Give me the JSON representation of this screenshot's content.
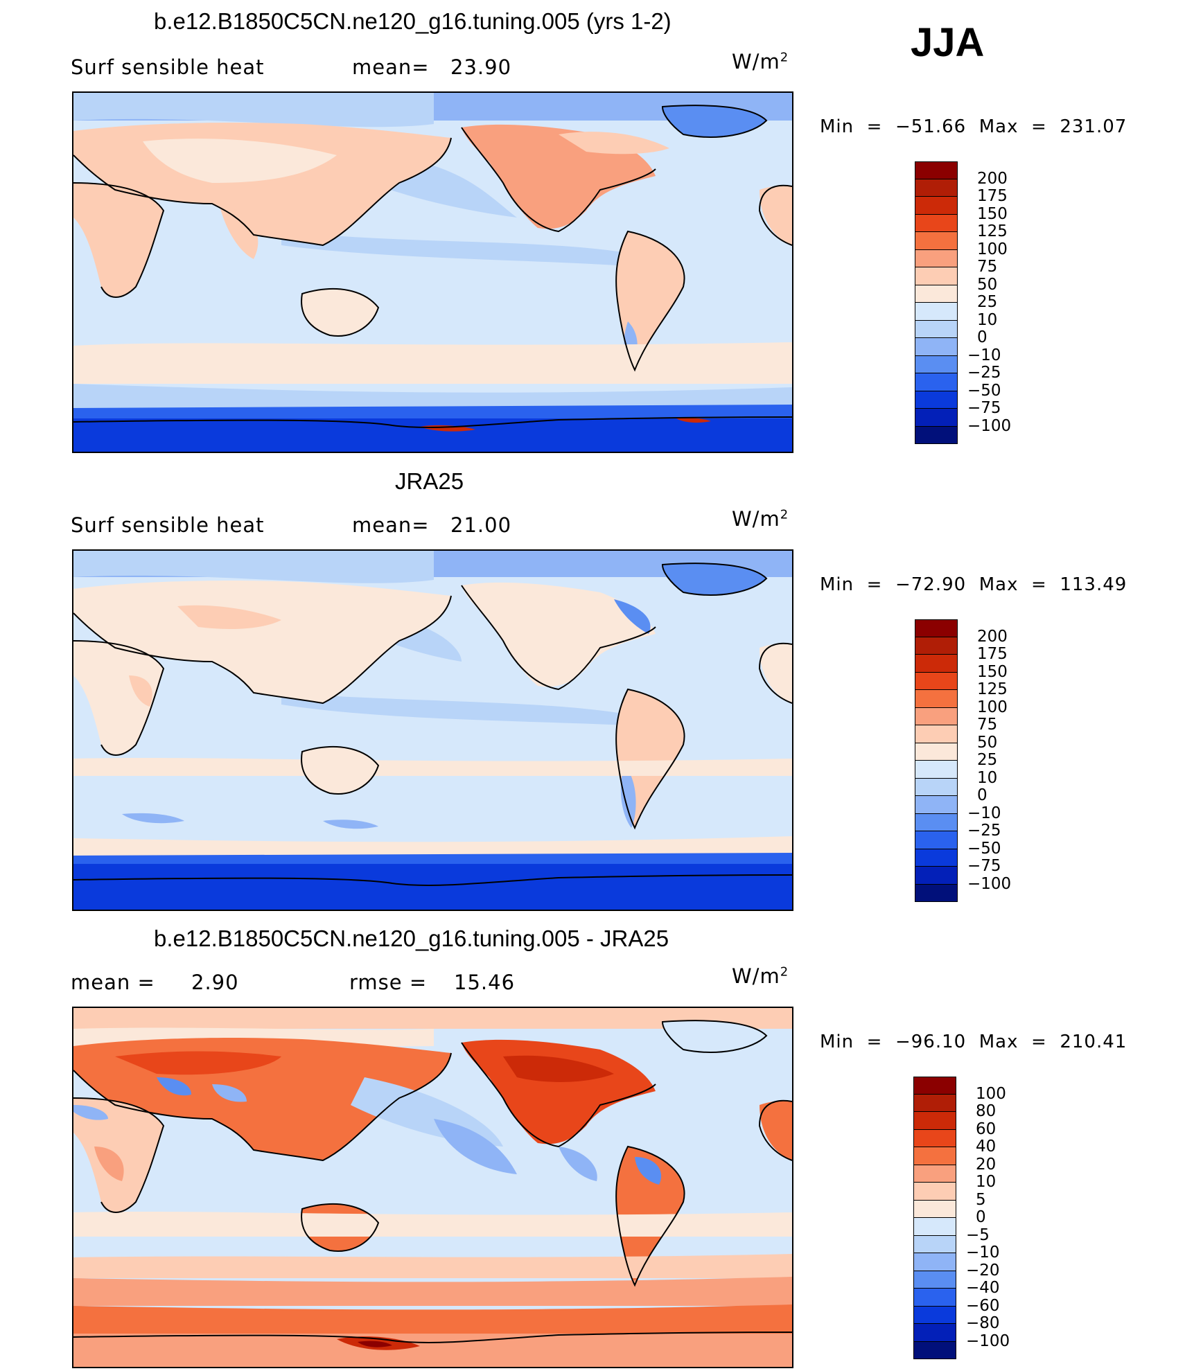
{
  "season": "JJA",
  "panels": [
    {
      "title": "b.e12.B1850C5CN.ne120_g16.tuning.005 (yrs 1-2)",
      "left_label": "Surf  sensible  heat",
      "center_label": "mean=",
      "center_value": "23.90",
      "units_base": "W/m",
      "units_exp": "2",
      "min_label": "Min",
      "min_value": "−51.66",
      "max_label": "Max",
      "max_value": "231.07",
      "colorbar_levels": [
        "200",
        "175",
        "150",
        "125",
        "100",
        "75",
        "50",
        "25",
        "10",
        "0",
        "−10",
        "−25",
        "−50",
        "−75",
        "−100"
      ],
      "colorbar_colors": [
        "#8b0000",
        "#b01e06",
        "#cc2a08",
        "#e8461a",
        "#f4713f",
        "#f9a07e",
        "#fdcdb4",
        "#fbe8da",
        "#d6e8fb",
        "#b8d4f8",
        "#8fb4f6",
        "#5a8ef2",
        "#2a62ee",
        "#0a3adc",
        "#0320b8",
        "#01107a"
      ]
    },
    {
      "title": "JRA25",
      "left_label": "Surf  sensible  heat",
      "center_label": "mean=",
      "center_value": "21.00",
      "units_base": "W/m",
      "units_exp": "2",
      "min_label": "Min",
      "min_value": "−72.90",
      "max_label": "Max",
      "max_value": "113.49",
      "colorbar_levels": [
        "200",
        "175",
        "150",
        "125",
        "100",
        "75",
        "50",
        "25",
        "10",
        "0",
        "−10",
        "−25",
        "−50",
        "−75",
        "−100"
      ],
      "colorbar_colors": [
        "#8b0000",
        "#b01e06",
        "#cc2a08",
        "#e8461a",
        "#f4713f",
        "#f9a07e",
        "#fdcdb4",
        "#fbe8da",
        "#d6e8fb",
        "#b8d4f8",
        "#8fb4f6",
        "#5a8ef2",
        "#2a62ee",
        "#0a3adc",
        "#0320b8",
        "#01107a"
      ]
    },
    {
      "title": "b.e12.B1850C5CN.ne120_g16.tuning.005 - JRA25",
      "left_label": "mean  =",
      "left_value": "2.90",
      "center_label": "rmse  =",
      "center_value": "15.46",
      "units_base": "W/m",
      "units_exp": "2",
      "min_label": "Min",
      "min_value": "−96.10",
      "max_label": "Max",
      "max_value": "210.41",
      "colorbar_levels": [
        "100",
        "80",
        "60",
        "40",
        "20",
        "10",
        "5",
        "0",
        "−5",
        "−10",
        "−20",
        "−40",
        "−60",
        "−80",
        "−100"
      ],
      "colorbar_colors": [
        "#8b0000",
        "#b01e06",
        "#cc2a08",
        "#e8461a",
        "#f4713f",
        "#f9a07e",
        "#fdcdb4",
        "#fbe8da",
        "#d6e8fb",
        "#b8d4f8",
        "#8fb4f6",
        "#5a8ef2",
        "#2a62ee",
        "#0a3adc",
        "#0320b8",
        "#01107a"
      ]
    }
  ],
  "chart_data": [
    {
      "type": "heatmap",
      "title": "b.e12.B1850C5CN.ne120_g16.tuning.005 (yrs 1-2)",
      "variable": "Surf  sensible  heat",
      "units": "W/m2",
      "mean": 23.9,
      "min": -51.66,
      "max": 231.07,
      "levels": [
        -100,
        -75,
        -50,
        -25,
        -10,
        0,
        10,
        25,
        50,
        75,
        100,
        125,
        150,
        175,
        200
      ]
    },
    {
      "type": "heatmap",
      "title": "JRA25",
      "variable": "Surf  sensible  heat",
      "units": "W/m2",
      "mean": 21.0,
      "min": -72.9,
      "max": 113.49,
      "levels": [
        -100,
        -75,
        -50,
        -25,
        -10,
        0,
        10,
        25,
        50,
        75,
        100,
        125,
        150,
        175,
        200
      ]
    },
    {
      "type": "heatmap",
      "title": "b.e12.B1850C5CN.ne120_g16.tuning.005 - JRA25",
      "units": "W/m2",
      "mean": 2.9,
      "rmse": 15.46,
      "min": -96.1,
      "max": 210.41,
      "levels": [
        -100,
        -80,
        -60,
        -40,
        -20,
        -10,
        -5,
        0,
        5,
        10,
        20,
        40,
        60,
        80,
        100
      ]
    }
  ]
}
